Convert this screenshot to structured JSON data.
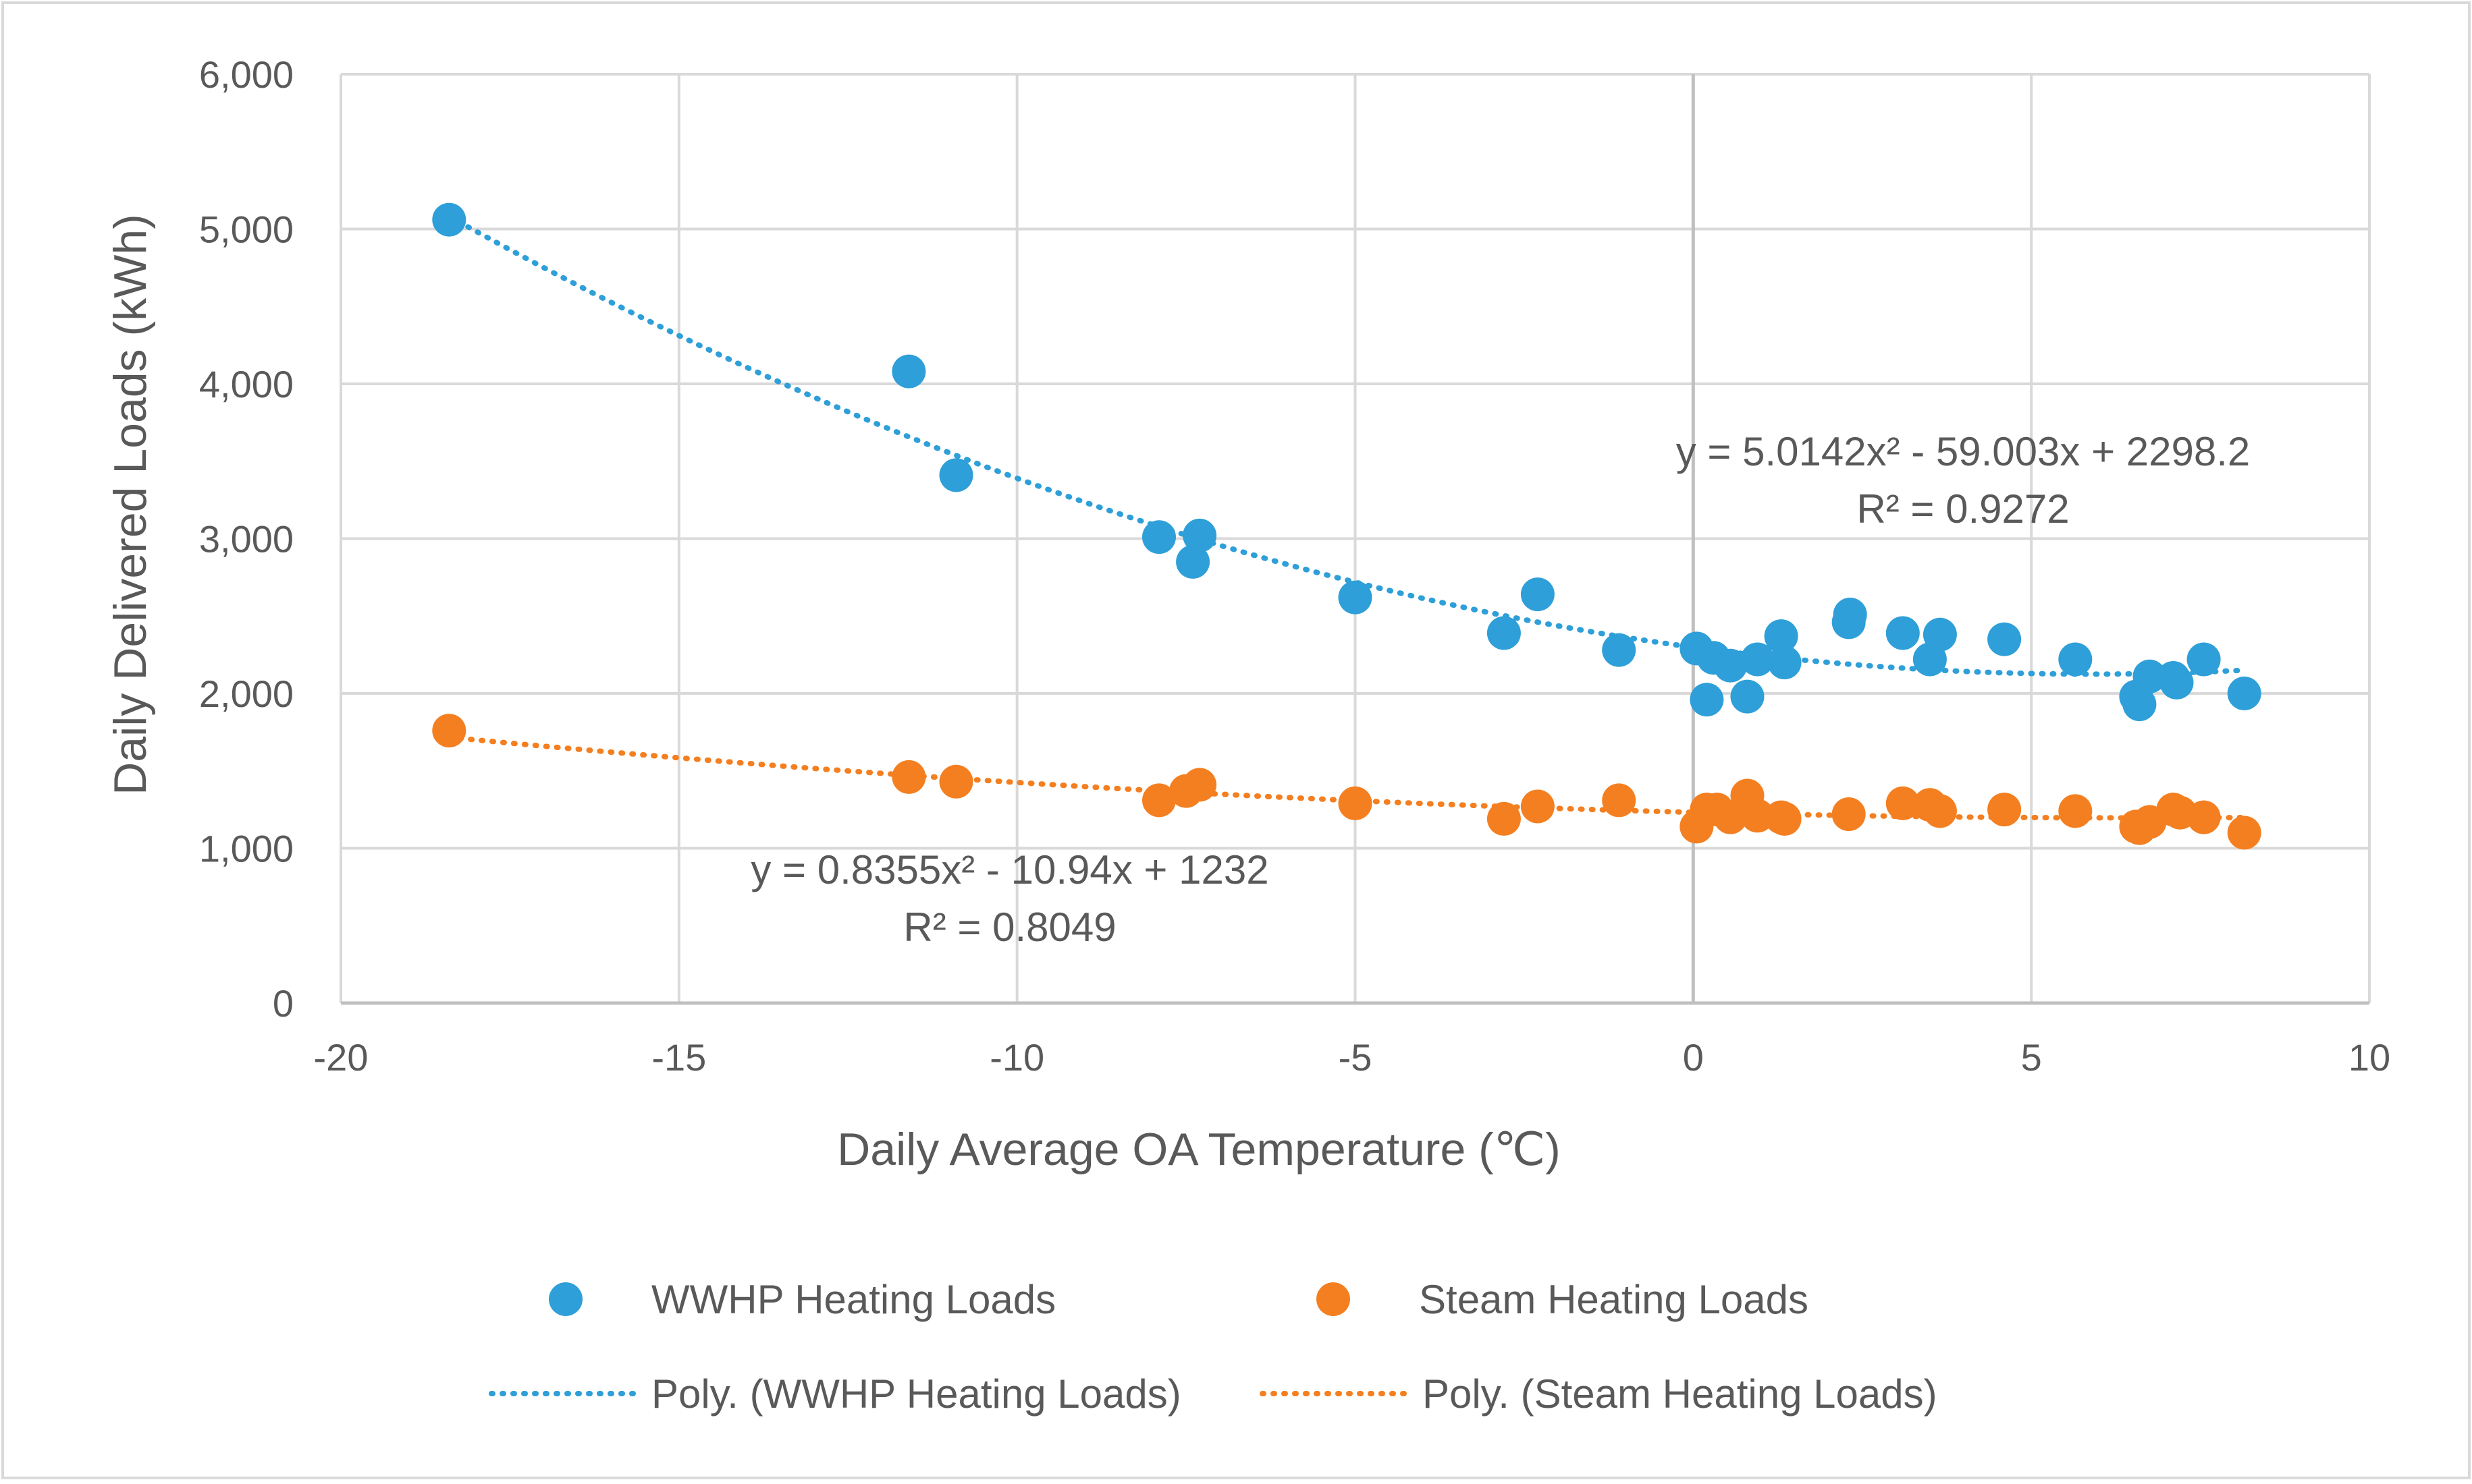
{
  "chart_data": {
    "type": "scatter",
    "title": "",
    "xlabel": "Daily Average OA Temperature (℃)",
    "ylabel": "Daily Delivered Loads (kWh)",
    "xlim": [
      -20,
      10
    ],
    "ylim": [
      0,
      6000
    ],
    "x_ticks": [
      "-20",
      "-15",
      "-10",
      "-5",
      "0",
      "5",
      "10"
    ],
    "y_ticks": [
      "0",
      "1,000",
      "2,000",
      "3,000",
      "4,000",
      "5,000",
      "6,000"
    ],
    "x_tick_values": [
      -20,
      -15,
      -10,
      -5,
      0,
      5,
      10
    ],
    "y_tick_values": [
      0,
      1000,
      2000,
      3000,
      4000,
      5000,
      6000
    ],
    "grid": true,
    "series": [
      {
        "name": "WWHP Heating Loads",
        "color": "#2e9fd8",
        "points": [
          [
            -18.4,
            5060
          ],
          [
            -11.6,
            4080
          ],
          [
            -10.9,
            3410
          ],
          [
            -7.9,
            3010
          ],
          [
            -7.4,
            2850
          ],
          [
            -7.3,
            3020
          ],
          [
            -5.0,
            2620
          ],
          [
            -2.8,
            2390
          ],
          [
            -2.3,
            2640
          ],
          [
            -1.1,
            2280
          ],
          [
            0.05,
            2290
          ],
          [
            0.2,
            1960
          ],
          [
            0.3,
            2230
          ],
          [
            0.55,
            2180
          ],
          [
            0.8,
            1980
          ],
          [
            0.95,
            2220
          ],
          [
            1.3,
            2370
          ],
          [
            1.35,
            2200
          ],
          [
            2.3,
            2460
          ],
          [
            2.32,
            2510
          ],
          [
            3.1,
            2390
          ],
          [
            3.5,
            2220
          ],
          [
            3.65,
            2380
          ],
          [
            4.6,
            2350
          ],
          [
            5.65,
            2220
          ],
          [
            6.55,
            1980
          ],
          [
            6.6,
            1930
          ],
          [
            6.75,
            2110
          ],
          [
            7.1,
            2100
          ],
          [
            7.15,
            2070
          ],
          [
            7.55,
            2220
          ],
          [
            8.15,
            2000
          ]
        ]
      },
      {
        "name": "Steam Heating Loads",
        "color": "#f47f20",
        "points": [
          [
            -18.4,
            1760
          ],
          [
            -11.6,
            1460
          ],
          [
            -10.9,
            1430
          ],
          [
            -7.9,
            1310
          ],
          [
            -7.5,
            1370
          ],
          [
            -7.3,
            1410
          ],
          [
            -5.0,
            1290
          ],
          [
            -2.8,
            1190
          ],
          [
            -2.3,
            1270
          ],
          [
            -1.1,
            1310
          ],
          [
            0.05,
            1140
          ],
          [
            0.2,
            1250
          ],
          [
            0.35,
            1250
          ],
          [
            0.55,
            1200
          ],
          [
            0.8,
            1340
          ],
          [
            0.95,
            1210
          ],
          [
            1.3,
            1200
          ],
          [
            1.35,
            1190
          ],
          [
            2.3,
            1220
          ],
          [
            3.1,
            1290
          ],
          [
            3.5,
            1280
          ],
          [
            3.65,
            1240
          ],
          [
            4.6,
            1250
          ],
          [
            5.65,
            1240
          ],
          [
            6.55,
            1140
          ],
          [
            6.6,
            1130
          ],
          [
            6.75,
            1170
          ],
          [
            7.1,
            1250
          ],
          [
            7.2,
            1230
          ],
          [
            7.55,
            1200
          ],
          [
            8.15,
            1100
          ]
        ]
      }
    ],
    "trendlines": [
      {
        "name": "Poly. (WWHP Heating Loads)",
        "color": "#2e9fd8",
        "coefficients": {
          "a": 5.0142,
          "b": -59.003,
          "c": 2298.2
        },
        "equation": "y = 5.0142x² - 59.003x + 2298.2",
        "r_squared": "R² = 0.9272",
        "x_range": [
          -18.4,
          8.15
        ]
      },
      {
        "name": "Poly. (Steam Heating Loads)",
        "color": "#f47f20",
        "coefficients": {
          "a": 0.8355,
          "b": -10.94,
          "c": 1232
        },
        "equation": "y = 0.8355x² - 10.94x + 1232",
        "r_squared": "R² = 0.8049",
        "x_range": [
          -18.4,
          8.15
        ]
      }
    ]
  },
  "legend": {
    "position": "bottom",
    "items": [
      {
        "label": "WWHP Heating Loads",
        "kind": "marker",
        "color": "#2e9fd8"
      },
      {
        "label": "Steam Heating Loads",
        "kind": "marker",
        "color": "#f47f20"
      },
      {
        "label": "Poly. (WWHP Heating Loads)",
        "kind": "line",
        "color": "#2e9fd8"
      },
      {
        "label": "Poly. (Steam Heating Loads)",
        "kind": "line",
        "color": "#f47f20"
      }
    ]
  }
}
